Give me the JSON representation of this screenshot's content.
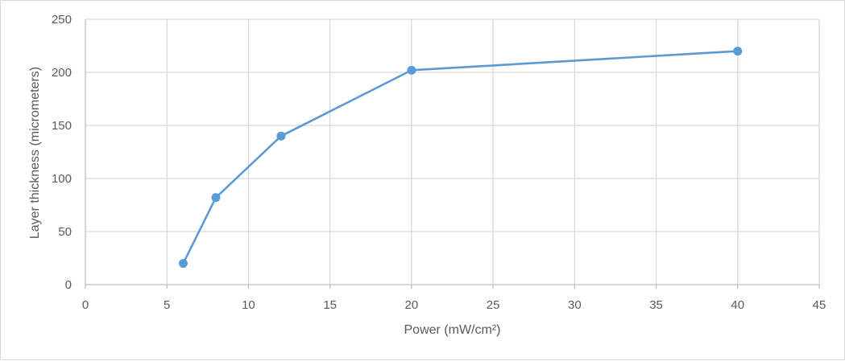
{
  "chart_data": {
    "type": "line",
    "title": "",
    "xlabel": "Power (mW/cm²)",
    "ylabel": "Layer thickness (micrometers)",
    "xlim": [
      0,
      45
    ],
    "ylim": [
      0,
      250
    ],
    "x_ticks": [
      0,
      5,
      10,
      15,
      20,
      25,
      30,
      35,
      40,
      45
    ],
    "y_ticks": [
      0,
      50,
      100,
      150,
      200,
      250
    ],
    "grid": true,
    "legend": "none",
    "series": [
      {
        "x": [
          6,
          8,
          12,
          20,
          40
        ],
        "y": [
          20,
          82,
          140,
          202,
          220
        ],
        "color": "#5b9bd5",
        "marker": "circle"
      }
    ],
    "colors": {
      "grid": "#d9d9d9",
      "axis": "#bfbfbf",
      "text": "#595959"
    }
  }
}
